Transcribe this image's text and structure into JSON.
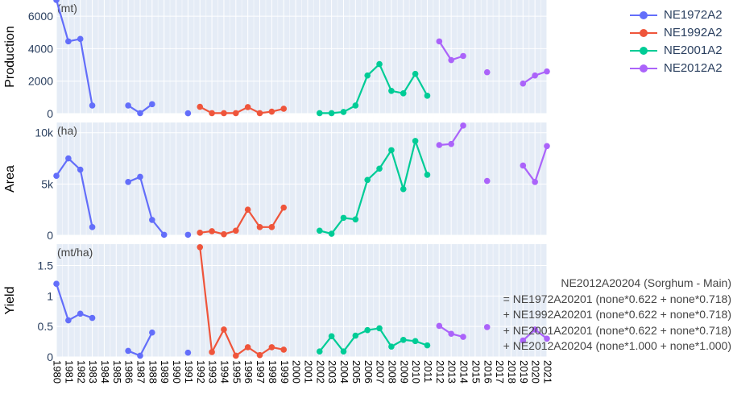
{
  "chart_data": {
    "type": "line",
    "x": [
      1980,
      1981,
      1982,
      1983,
      1984,
      1985,
      1986,
      1987,
      1988,
      1989,
      1990,
      1991,
      1992,
      1993,
      1994,
      1995,
      1996,
      1997,
      1998,
      1999,
      2000,
      2001,
      2002,
      2003,
      2004,
      2005,
      2006,
      2007,
      2008,
      2009,
      2010,
      2011,
      2012,
      2013,
      2014,
      2015,
      2016,
      2017,
      2018,
      2019,
      2020,
      2021
    ],
    "x_tick_labels": [
      "1980",
      "1981",
      "1982",
      "1983",
      "1984",
      "1985",
      "1986",
      "1987",
      "1988",
      "1989",
      "1990",
      "1991",
      "1992",
      "1993",
      "1994",
      "1995",
      "1996",
      "1997",
      "1998",
      "1999",
      "2000",
      "2001",
      "2002",
      "2003",
      "2004",
      "2005",
      "2006",
      "2007",
      "2008",
      "2009",
      "2010",
      "2011",
      "2012",
      "2013",
      "2014",
      "2015",
      "2016",
      "2017",
      "2018",
      "2019",
      "2020",
      "2021"
    ],
    "legend_position": "top-right",
    "grid": true,
    "series": [
      {
        "name": "NE1972A2",
        "color": "#636efa"
      },
      {
        "name": "NE1992A2",
        "color": "#ef553b"
      },
      {
        "name": "NE2001A2",
        "color": "#00cc96"
      },
      {
        "name": "NE2012A2",
        "color": "#ab63fa"
      }
    ],
    "panels": [
      {
        "ylabel": "Production",
        "unit": "(mt)",
        "ylim": [
          0,
          7000
        ],
        "yticks": [
          0,
          2000,
          4000,
          6000
        ],
        "ytick_labels": [
          "0",
          "2000",
          "4000",
          "6000"
        ],
        "series_values": [
          [
            7000,
            4450,
            4600,
            500,
            null,
            null,
            500,
            30,
            580,
            null,
            null,
            20,
            null,
            null,
            null,
            null,
            null,
            null,
            null,
            null,
            null,
            null,
            null,
            null,
            null,
            null,
            null,
            null,
            null,
            null,
            null,
            null,
            null,
            null,
            null,
            null,
            null,
            null,
            null,
            null,
            null,
            null
          ],
          [
            null,
            null,
            null,
            null,
            null,
            null,
            null,
            null,
            null,
            null,
            null,
            null,
            420,
            30,
            30,
            30,
            400,
            30,
            120,
            300,
            null,
            null,
            null,
            null,
            null,
            null,
            null,
            null,
            null,
            null,
            null,
            null,
            null,
            null,
            null,
            null,
            null,
            null,
            null,
            null,
            null,
            null
          ],
          [
            null,
            null,
            null,
            null,
            null,
            null,
            null,
            null,
            null,
            null,
            null,
            null,
            null,
            null,
            null,
            null,
            null,
            null,
            null,
            null,
            null,
            null,
            30,
            30,
            100,
            500,
            2350,
            3050,
            1400,
            1250,
            2450,
            1100,
            null,
            null,
            null,
            null,
            null,
            null,
            null,
            null,
            null,
            null
          ],
          [
            null,
            null,
            null,
            null,
            null,
            null,
            null,
            null,
            null,
            null,
            null,
            null,
            null,
            null,
            null,
            null,
            null,
            null,
            null,
            null,
            null,
            null,
            null,
            null,
            null,
            null,
            null,
            null,
            null,
            null,
            null,
            null,
            4450,
            3300,
            3550,
            null,
            2550,
            null,
            null,
            1850,
            2350,
            2600
          ]
        ]
      },
      {
        "ylabel": "Area",
        "unit": "(ha)",
        "ylim": [
          0,
          11000
        ],
        "yticks": [
          0,
          5000,
          10000
        ],
        "ytick_labels": [
          "0",
          "5k",
          "10k"
        ],
        "series_values": [
          [
            5800,
            7500,
            6400,
            800,
            null,
            null,
            5200,
            5700,
            1500,
            50,
            null,
            50,
            null,
            null,
            null,
            null,
            null,
            null,
            null,
            null,
            null,
            null,
            null,
            null,
            null,
            null,
            null,
            null,
            null,
            null,
            null,
            null,
            null,
            null,
            null,
            null,
            null,
            null,
            null,
            null,
            null,
            null
          ],
          [
            null,
            null,
            null,
            null,
            null,
            null,
            null,
            null,
            null,
            null,
            null,
            null,
            250,
            400,
            100,
            450,
            2500,
            800,
            800,
            2700,
            null,
            null,
            null,
            null,
            null,
            null,
            null,
            null,
            null,
            null,
            null,
            null,
            null,
            null,
            null,
            null,
            null,
            null,
            null,
            null,
            null,
            null
          ],
          [
            null,
            null,
            null,
            null,
            null,
            null,
            null,
            null,
            null,
            null,
            null,
            null,
            null,
            null,
            null,
            null,
            null,
            null,
            null,
            null,
            null,
            null,
            450,
            150,
            1700,
            1550,
            5400,
            6500,
            8300,
            4500,
            9200,
            5900,
            null,
            null,
            null,
            null,
            null,
            null,
            null,
            null,
            null,
            null
          ],
          [
            null,
            null,
            null,
            null,
            null,
            null,
            null,
            null,
            null,
            null,
            null,
            null,
            null,
            null,
            null,
            null,
            null,
            null,
            null,
            null,
            null,
            null,
            null,
            null,
            null,
            null,
            null,
            null,
            null,
            null,
            null,
            null,
            8800,
            8900,
            10700,
            null,
            5300,
            null,
            null,
            6800,
            5200,
            8700
          ]
        ]
      },
      {
        "ylabel": "Yield",
        "unit": "(mt/ha)",
        "ylim": [
          0,
          1.85
        ],
        "yticks": [
          0,
          0.5,
          1,
          1.5
        ],
        "ytick_labels": [
          "0",
          "0.5",
          "1",
          "1.5"
        ],
        "series_values": [
          [
            1.2,
            0.6,
            0.71,
            0.64,
            null,
            null,
            0.1,
            0.02,
            0.4,
            null,
            null,
            0.07,
            null,
            null,
            null,
            null,
            null,
            null,
            null,
            null,
            null,
            null,
            null,
            null,
            null,
            null,
            null,
            null,
            null,
            null,
            null,
            null,
            null,
            null,
            null,
            null,
            null,
            null,
            null,
            null,
            null,
            null
          ],
          [
            null,
            null,
            null,
            null,
            null,
            null,
            null,
            null,
            null,
            null,
            null,
            null,
            1.8,
            0.08,
            0.45,
            0.02,
            0.16,
            0.03,
            0.16,
            0.12,
            null,
            null,
            null,
            null,
            null,
            null,
            null,
            null,
            null,
            null,
            null,
            null,
            null,
            null,
            null,
            null,
            null,
            null,
            null,
            null,
            null,
            null
          ],
          [
            null,
            null,
            null,
            null,
            null,
            null,
            null,
            null,
            null,
            null,
            null,
            null,
            null,
            null,
            null,
            null,
            null,
            null,
            null,
            null,
            null,
            null,
            0.09,
            0.34,
            0.09,
            0.35,
            0.44,
            0.47,
            0.17,
            0.28,
            0.26,
            0.19,
            null,
            null,
            null,
            null,
            null,
            null,
            null,
            null,
            null,
            null
          ],
          [
            null,
            null,
            null,
            null,
            null,
            null,
            null,
            null,
            null,
            null,
            null,
            null,
            null,
            null,
            null,
            null,
            null,
            null,
            null,
            null,
            null,
            null,
            null,
            null,
            null,
            null,
            null,
            null,
            null,
            null,
            null,
            null,
            0.51,
            0.38,
            0.33,
            null,
            0.49,
            null,
            null,
            0.27,
            0.45,
            0.3
          ]
        ]
      }
    ],
    "annotation_lines": [
      "NE2012A20204 (Sorghum - Main)",
      "= NE1972A20201 (none*0.622 + none*0.718)",
      "+ NE1992A20201 (none*0.622 + none*0.718)",
      "+ NE2001A20201 (none*0.622 + none*0.718)",
      "+ NE2012A20204 (none*1.000 + none*1.000)"
    ]
  }
}
